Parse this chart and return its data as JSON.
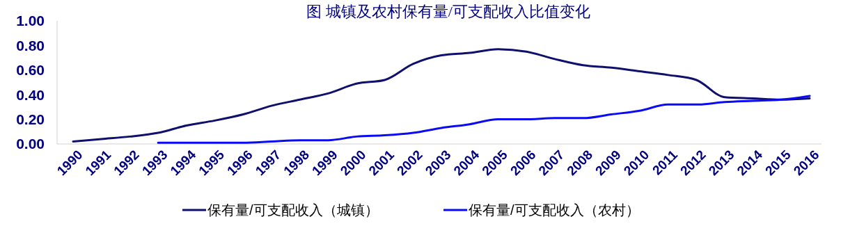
{
  "chart_data": {
    "type": "line",
    "title": "图 城镇及农村保有量/可支配收入比值变化",
    "categories": [
      "1990",
      "1991",
      "1992",
      "1993",
      "1994",
      "1995",
      "1996",
      "1997",
      "1998",
      "1999",
      "2000",
      "2001",
      "2002",
      "2003",
      "2004",
      "2005",
      "2006",
      "2007",
      "2008",
      "2009",
      "2010",
      "2011",
      "2012",
      "2013",
      "2014",
      "2015",
      "2016"
    ],
    "series": [
      {
        "name": "保有量/可支配收入（城镇）",
        "color": "#0f0f6e",
        "values": [
          0.02,
          0.04,
          0.06,
          0.09,
          0.15,
          0.19,
          0.24,
          0.31,
          0.36,
          0.41,
          0.49,
          0.52,
          0.65,
          0.72,
          0.74,
          0.77,
          0.75,
          0.69,
          0.64,
          0.62,
          0.59,
          0.56,
          0.52,
          0.38,
          0.37,
          0.36,
          0.37
        ]
      },
      {
        "name": "保有量/可支配收入（农村）",
        "color": "#0a0af5",
        "values": [
          null,
          null,
          null,
          0.01,
          0.01,
          0.01,
          0.01,
          0.02,
          0.03,
          0.03,
          0.06,
          0.07,
          0.09,
          0.13,
          0.16,
          0.2,
          0.2,
          0.21,
          0.21,
          0.24,
          0.27,
          0.32,
          0.32,
          0.34,
          0.35,
          0.36,
          0.39
        ]
      }
    ],
    "ylim": [
      0,
      1
    ],
    "yticks": [
      {
        "value": 0,
        "label": "0.00"
      },
      {
        "value": 0.2,
        "label": "0.20"
      },
      {
        "value": 0.4,
        "label": "0.40"
      },
      {
        "value": 0.6,
        "label": "0.60"
      },
      {
        "value": 0.8,
        "label": "0.80"
      },
      {
        "value": 1,
        "label": "1.00"
      }
    ],
    "grid": false,
    "legend": "bottom",
    "marker": "none",
    "line_style": "solid"
  }
}
